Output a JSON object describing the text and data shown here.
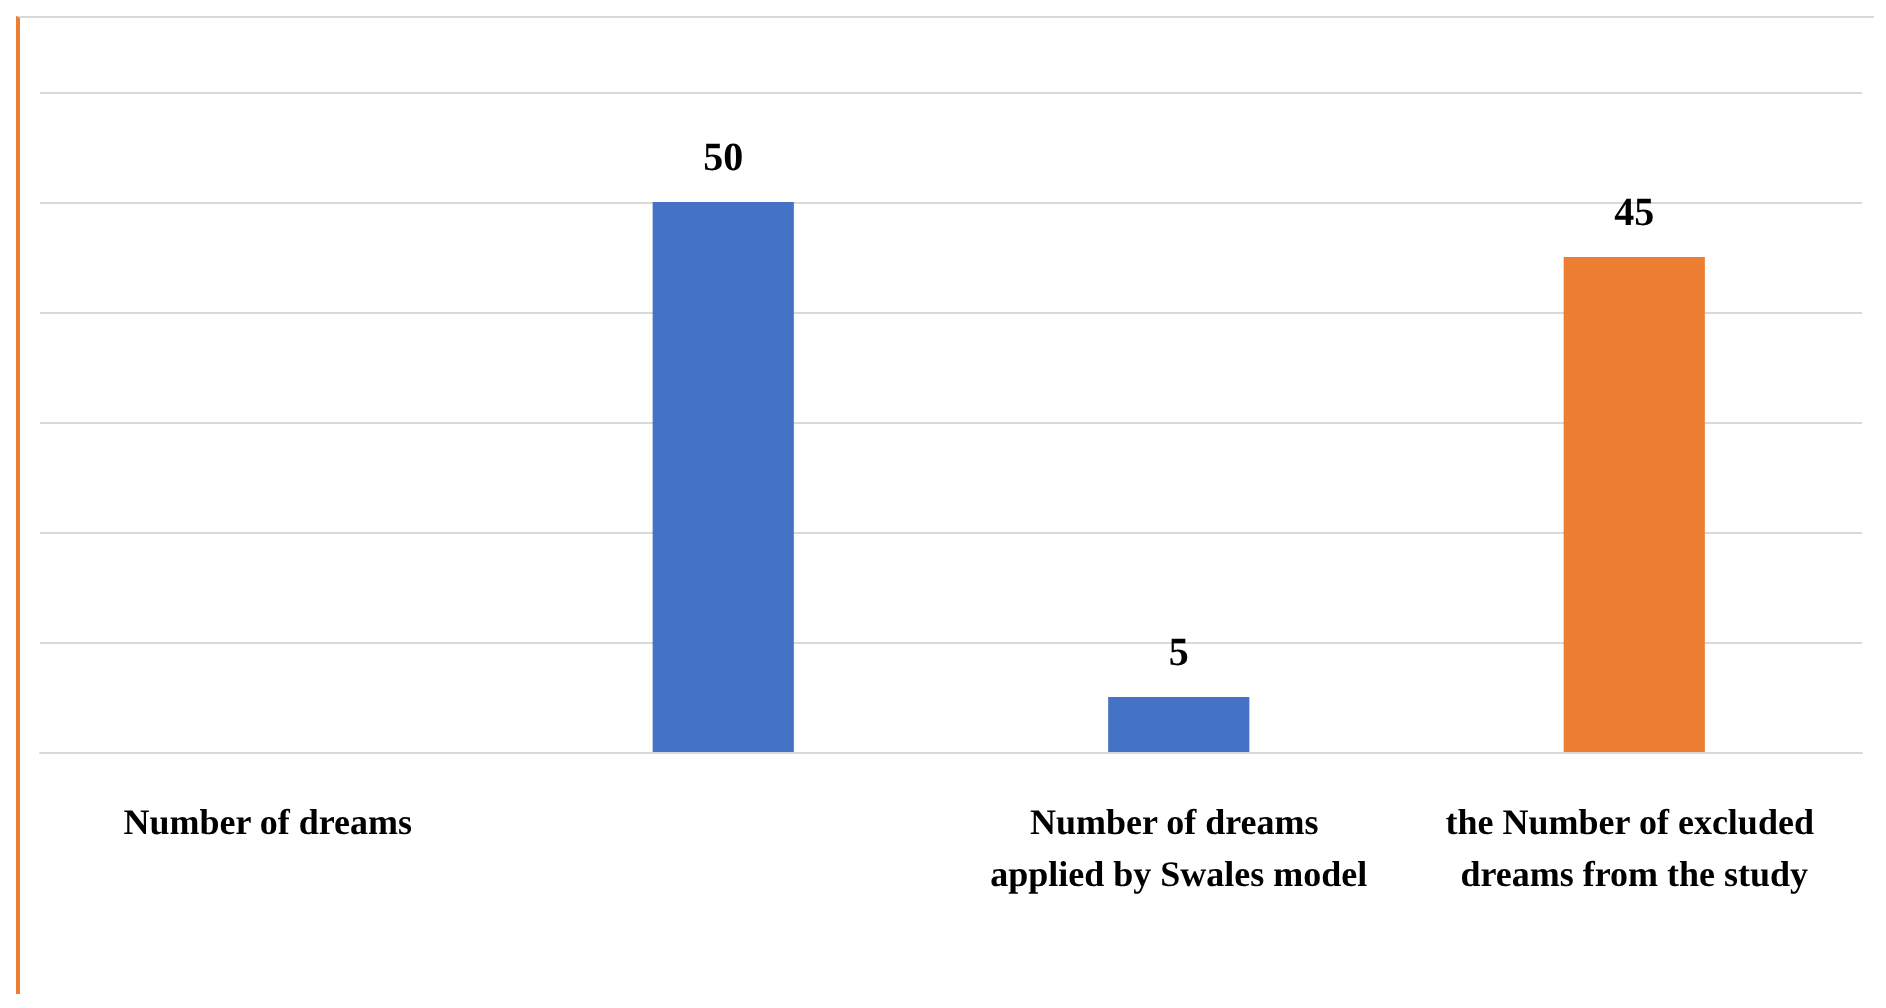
{
  "chart_data": {
    "type": "bar",
    "categories": [
      "Number of dreams",
      null,
      "Number of dreams applied by Swales model",
      "the Number of excluded dreams from the study"
    ],
    "values": [
      null,
      50,
      5,
      45
    ],
    "colors": [
      "#4472c4",
      "#4472c4",
      "#4472c4",
      "#ed7d31"
    ],
    "ylim": [
      0,
      60
    ],
    "yticks": [
      0,
      10,
      20,
      30,
      40,
      50,
      60
    ],
    "tick_labels": "x",
    "grid": "y",
    "data_labels": true
  }
}
